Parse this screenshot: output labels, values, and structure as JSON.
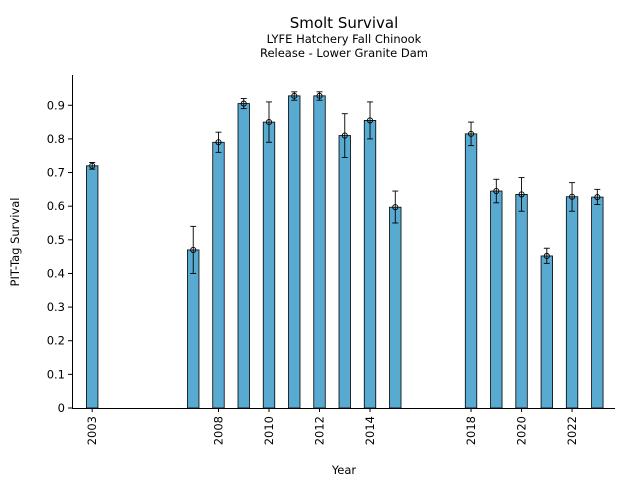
{
  "chart_data": {
    "type": "bar",
    "title": "Smolt Survival",
    "subtitle_line1": "LYFE Hatchery Fall Chinook",
    "subtitle_line2": "Release - Lower Granite Dam",
    "xlabel": "Year",
    "ylabel": "PIT-Tag Survival",
    "ylim": [
      0,
      0.99
    ],
    "xlim": [
      2002.2,
      2023.7
    ],
    "yticks": [
      0,
      0.1,
      0.2,
      0.3,
      0.4,
      0.5,
      0.6,
      0.7,
      0.8,
      0.9
    ],
    "xticks": [
      2003,
      2008,
      2010,
      2012,
      2014,
      2018,
      2020,
      2022
    ],
    "bar_color": "#58aad1",
    "grid": false,
    "data": [
      {
        "x": 2003,
        "y": 0.72,
        "lower": 0.71,
        "upper": 0.73
      },
      {
        "x": 2007,
        "y": 0.47,
        "lower": 0.4,
        "upper": 0.54
      },
      {
        "x": 2008,
        "y": 0.79,
        "lower": 0.76,
        "upper": 0.82
      },
      {
        "x": 2009,
        "y": 0.905,
        "lower": 0.89,
        "upper": 0.92
      },
      {
        "x": 2010,
        "y": 0.85,
        "lower": 0.79,
        "upper": 0.91
      },
      {
        "x": 2011,
        "y": 0.928,
        "lower": 0.915,
        "upper": 0.94
      },
      {
        "x": 2012,
        "y": 0.928,
        "lower": 0.915,
        "upper": 0.94
      },
      {
        "x": 2013,
        "y": 0.81,
        "lower": 0.745,
        "upper": 0.875
      },
      {
        "x": 2014,
        "y": 0.855,
        "lower": 0.8,
        "upper": 0.91
      },
      {
        "x": 2015,
        "y": 0.597,
        "lower": 0.55,
        "upper": 0.645
      },
      {
        "x": 2018,
        "y": 0.815,
        "lower": 0.78,
        "upper": 0.85
      },
      {
        "x": 2019,
        "y": 0.645,
        "lower": 0.61,
        "upper": 0.68
      },
      {
        "x": 2020,
        "y": 0.635,
        "lower": 0.585,
        "upper": 0.685
      },
      {
        "x": 2021,
        "y": 0.452,
        "lower": 0.43,
        "upper": 0.475
      },
      {
        "x": 2022,
        "y": 0.628,
        "lower": 0.585,
        "upper": 0.67
      },
      {
        "x": 2023,
        "y": 0.627,
        "lower": 0.605,
        "upper": 0.65
      }
    ]
  }
}
